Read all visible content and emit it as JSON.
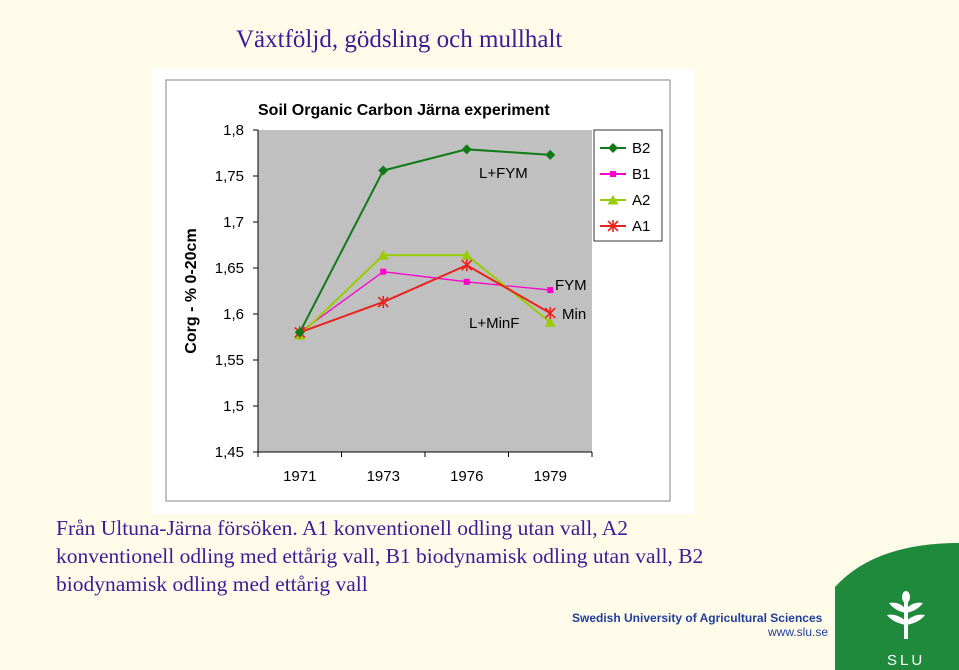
{
  "slide": {
    "title": "Växtföljd, gödsling och mullhalt",
    "caption": [
      "Från Ultuna-Järna försöken. A1 konventionell odling utan vall, A2",
      "konventionell odling med ettårig vall, B1 biodynamisk odling utan vall, B2",
      "biodynamisk odling med ettårig vall"
    ],
    "footer_org": "Swedish University of Agricultural Sciences",
    "footer_url": "www.slu.se",
    "logo_text": "SLU",
    "colors": {
      "text": "#3a1c97",
      "brand_green": "#1f8a3c",
      "footer_blue": "#1f3f9a"
    }
  },
  "chart_data": {
    "type": "line",
    "title": "Soil Organic Carbon Järna experiment",
    "xlabel": "",
    "ylabel": "Corg - % 0-20cm",
    "categories": [
      "1971",
      "1973",
      "1976",
      "1979"
    ],
    "ylim": [
      1.45,
      1.8
    ],
    "yticks": [
      "1,8",
      "1,75",
      "1,7",
      "1,65",
      "1,6",
      "1,55",
      "1,5",
      "1,45"
    ],
    "yvalues": [
      1.8,
      1.75,
      1.7,
      1.65,
      1.6,
      1.55,
      1.5,
      1.45
    ],
    "grid": false,
    "legend_position": "right",
    "series": [
      {
        "name": "B2",
        "color": "#0f7a16",
        "marker": "diamond",
        "values": [
          1.58,
          1.756,
          1.779,
          1.773
        ]
      },
      {
        "name": "B1",
        "color": "#ff00cc",
        "marker": "square",
        "values": [
          1.58,
          1.646,
          1.635,
          1.626
        ]
      },
      {
        "name": "A2",
        "color": "#99cc00",
        "marker": "triangle",
        "values": [
          1.577,
          1.664,
          1.664,
          1.591
        ]
      },
      {
        "name": "A1",
        "color": "#e8231c",
        "marker": "x",
        "values": [
          1.58,
          1.613,
          1.653,
          1.601
        ]
      }
    ],
    "annotations": [
      "L+FYM",
      "L+MinF",
      "FYM",
      "Min"
    ]
  }
}
